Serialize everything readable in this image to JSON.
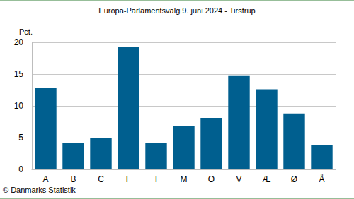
{
  "chart_data": {
    "type": "bar",
    "title": "Europa-Parlamentsvalg 9. juni 2024 - Tirstrup",
    "ylabel": "Pct.",
    "caption": "© Danmarks Statistik",
    "categories": [
      "A",
      "B",
      "C",
      "F",
      "I",
      "M",
      "O",
      "V",
      "Æ",
      "Ø",
      "Å"
    ],
    "values": [
      12.9,
      4.2,
      5.0,
      19.3,
      4.1,
      6.9,
      8.1,
      14.8,
      12.6,
      8.8,
      3.8
    ],
    "color": "#005f8f",
    "ylim": [
      0,
      20
    ],
    "yticks": [
      0,
      5,
      10,
      15,
      20
    ],
    "grid": true
  }
}
